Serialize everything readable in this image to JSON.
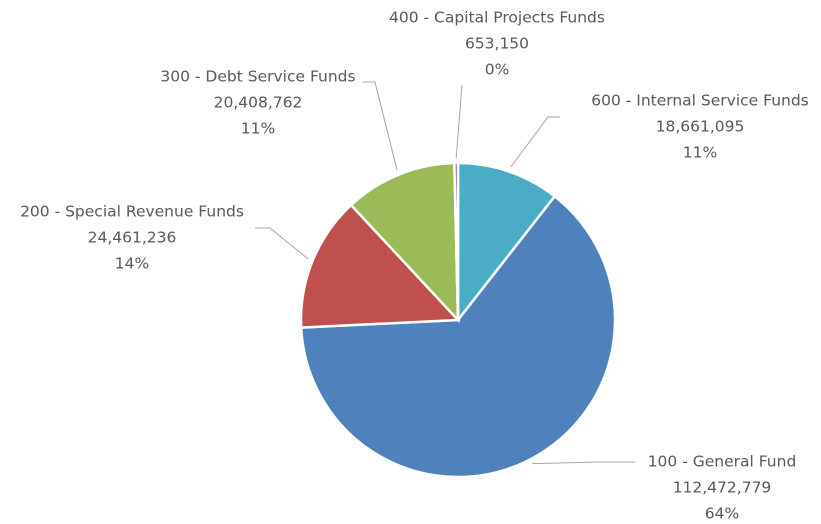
{
  "chart_data": {
    "type": "pie",
    "categories": [
      "600 - Internal Service Funds",
      "100 - General Fund",
      "200 - Special Revenue Funds",
      "300 - Debt Service Funds",
      "400 - Capital Projects Funds"
    ],
    "values": [
      18661095,
      112472779,
      24461236,
      20408762,
      653150
    ],
    "value_labels": [
      "18,661,095",
      "112,472,779",
      "24,461,236",
      "20,408,762",
      "653,150"
    ],
    "percents": [
      11,
      64,
      14,
      11,
      0
    ],
    "percent_labels": [
      "11%",
      "64%",
      "14%",
      "11%",
      "0%"
    ],
    "colors": [
      "#4bacc6",
      "#4f81bd",
      "#c0504d",
      "#9bbb59",
      "#8064a2"
    ]
  }
}
